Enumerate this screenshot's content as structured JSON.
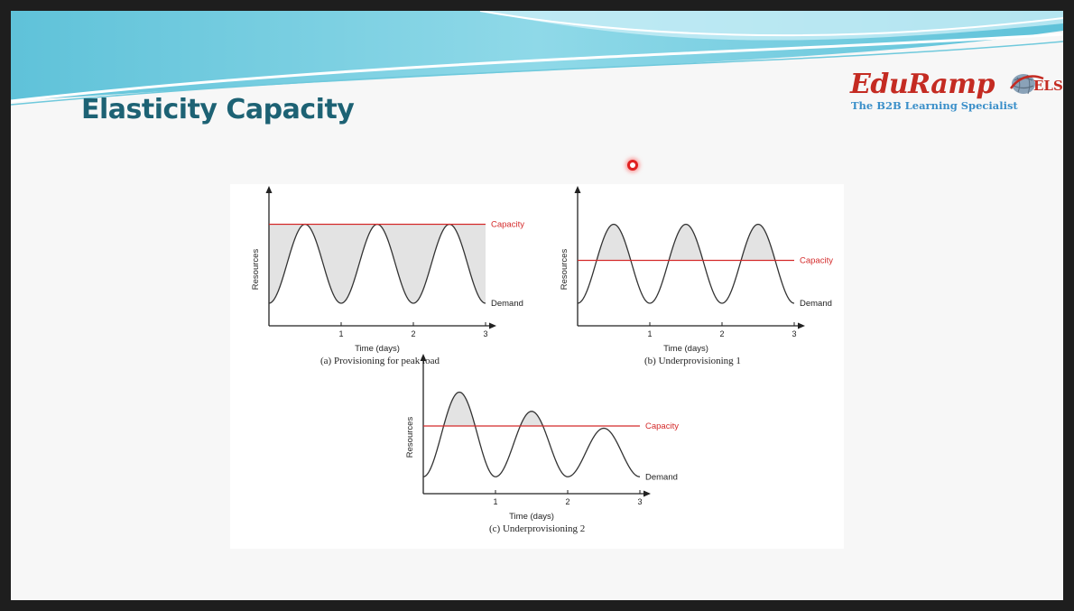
{
  "slide": {
    "title": "Elasticity Capacity",
    "logo": {
      "name_part1": "Edu",
      "name_part2": "Ramp",
      "badge": "ELS",
      "tagline": "The B2B Learning Specialist"
    }
  },
  "colors": {
    "title": "#1d6274",
    "capacity_line": "#d42a2a",
    "shaded_area": "#e3e3e3",
    "demand_curve": "#333333",
    "logo_red": "#c42b22",
    "logo_blue": "#3a8fc9",
    "banner": "#79cfe0"
  },
  "chart_data": [
    {
      "type": "line",
      "caption": "(a) Provisioning for peak load",
      "xlabel": "Time (days)",
      "ylabel": "Resources",
      "xticks": [
        "1",
        "2",
        "3"
      ],
      "xlim": [
        0,
        3
      ],
      "ylim": [
        0,
        1
      ],
      "grid": false,
      "series": [
        {
          "name": "Capacity",
          "kind": "constant",
          "value": 0.9
        },
        {
          "name": "Demand",
          "kind": "periodic",
          "period_days": 1,
          "peaks": [
            0.9,
            0.9,
            0.9
          ],
          "min": 0.2
        }
      ],
      "shaded": "capacity above demand"
    },
    {
      "type": "line",
      "caption": "(b) Underprovisioning 1",
      "xlabel": "Time (days)",
      "ylabel": "Resources",
      "xticks": [
        "1",
        "2",
        "3"
      ],
      "xlim": [
        0,
        3
      ],
      "ylim": [
        0,
        1
      ],
      "grid": false,
      "series": [
        {
          "name": "Capacity",
          "kind": "constant",
          "value": 0.58
        },
        {
          "name": "Demand",
          "kind": "periodic",
          "period_days": 1,
          "peaks": [
            0.9,
            0.9,
            0.9
          ],
          "min": 0.2
        }
      ],
      "shaded": "demand above capacity"
    },
    {
      "type": "line",
      "caption": "(c) Underprovisioning 2",
      "xlabel": "Time (days)",
      "ylabel": "Resources",
      "xticks": [
        "1",
        "2",
        "3"
      ],
      "xlim": [
        0,
        3
      ],
      "ylim": [
        0,
        1
      ],
      "grid": false,
      "series": [
        {
          "name": "Capacity",
          "kind": "constant",
          "value": 0.6
        },
        {
          "name": "Demand",
          "kind": "periodic",
          "period_days": 1,
          "peaks": [
            0.9,
            0.73,
            0.58
          ],
          "min": 0.15
        }
      ],
      "shaded": "demand above capacity"
    }
  ]
}
